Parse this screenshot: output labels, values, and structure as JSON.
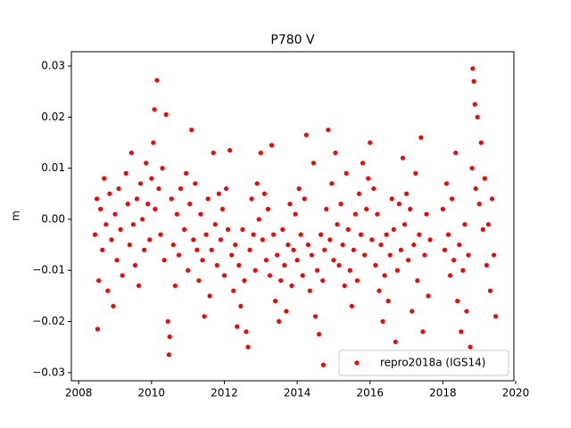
{
  "chart_data": {
    "type": "scatter",
    "title": "P780 V",
    "y_label": "m",
    "xlim": [
      2007.8,
      2019.95
    ],
    "xticks": [
      2008,
      2010,
      2012,
      2014,
      2016,
      2018,
      2020
    ],
    "ylim": [
      -0.0316,
      0.0328
    ],
    "yticks": [
      {
        "value": -0.03,
        "label": "−0.03"
      },
      {
        "value": -0.02,
        "label": "−0.02"
      },
      {
        "value": -0.01,
        "label": "−0.01"
      },
      {
        "value": 0,
        "label": "0.00"
      },
      0.01,
      0.02,
      0.03
    ],
    "legend": "lower right",
    "grid": false,
    "series": [
      {
        "name": "repro2018a (IGS14)",
        "color": "#ff0000",
        "x": [
          2008.45,
          2008.5,
          2008.52,
          2008.55,
          2008.6,
          2008.65,
          2008.7,
          2008.75,
          2008.8,
          2008.85,
          2008.9,
          2008.95,
          2009.0,
          2009.05,
          2009.1,
          2009.15,
          2009.2,
          2009.3,
          2009.35,
          2009.4,
          2009.45,
          2009.5,
          2009.55,
          2009.6,
          2009.65,
          2009.7,
          2009.75,
          2009.8,
          2009.85,
          2009.9,
          2009.95,
          2010.0,
          2010.05,
          2010.08,
          2010.1,
          2010.15,
          2010.2,
          2010.25,
          2010.3,
          2010.35,
          2010.4,
          2010.45,
          2010.48,
          2010.5,
          2010.55,
          2010.6,
          2010.65,
          2010.7,
          2010.75,
          2010.8,
          2010.9,
          2010.95,
          2011.0,
          2011.05,
          2011.1,
          2011.15,
          2011.2,
          2011.25,
          2011.3,
          2011.35,
          2011.4,
          2011.45,
          2011.5,
          2011.55,
          2011.6,
          2011.65,
          2011.7,
          2011.75,
          2011.8,
          2011.85,
          2011.9,
          2011.95,
          2012.0,
          2012.05,
          2012.1,
          2012.15,
          2012.2,
          2012.25,
          2012.3,
          2012.35,
          2012.4,
          2012.45,
          2012.5,
          2012.55,
          2012.6,
          2012.65,
          2012.7,
          2012.75,
          2012.8,
          2012.85,
          2012.9,
          2012.95,
          2013.0,
          2013.05,
          2013.1,
          2013.15,
          2013.2,
          2013.25,
          2013.3,
          2013.35,
          2013.4,
          2013.45,
          2013.5,
          2013.55,
          2013.6,
          2013.65,
          2013.7,
          2013.75,
          2013.8,
          2013.85,
          2013.9,
          2013.95,
          2014.0,
          2014.05,
          2014.1,
          2014.15,
          2014.2,
          2014.25,
          2014.3,
          2014.35,
          2014.4,
          2014.45,
          2014.5,
          2014.55,
          2014.6,
          2014.65,
          2014.7,
          2014.72,
          2014.75,
          2014.8,
          2014.85,
          2014.9,
          2014.95,
          2015.0,
          2015.05,
          2015.1,
          2015.15,
          2015.2,
          2015.25,
          2015.3,
          2015.35,
          2015.4,
          2015.45,
          2015.5,
          2015.55,
          2015.6,
          2015.65,
          2015.7,
          2015.75,
          2015.8,
          2015.85,
          2015.9,
          2015.95,
          2016.0,
          2016.05,
          2016.1,
          2016.15,
          2016.2,
          2016.25,
          2016.3,
          2016.35,
          2016.4,
          2016.45,
          2016.5,
          2016.55,
          2016.6,
          2016.65,
          2016.7,
          2016.75,
          2016.8,
          2016.85,
          2016.9,
          2016.95,
          2017.0,
          2017.05,
          2017.1,
          2017.15,
          2017.2,
          2017.25,
          2017.3,
          2017.35,
          2017.4,
          2017.45,
          2017.5,
          2017.55,
          2017.6,
          2017.65,
          2018.0,
          2018.05,
          2018.1,
          2018.15,
          2018.2,
          2018.25,
          2018.3,
          2018.35,
          2018.4,
          2018.45,
          2018.5,
          2018.55,
          2018.6,
          2018.65,
          2018.7,
          2018.75,
          2018.8,
          2018.82,
          2018.85,
          2018.88,
          2018.9,
          2018.95,
          2019.0,
          2019.05,
          2019.1,
          2019.15,
          2019.2,
          2019.25,
          2019.3,
          2019.35,
          2019.4,
          2019.45
        ],
        "values": [
          -0.003,
          0.004,
          -0.0215,
          -0.012,
          0.002,
          -0.006,
          0.008,
          -0.001,
          -0.014,
          0.005,
          -0.004,
          -0.017,
          0.001,
          -0.008,
          0.006,
          -0.002,
          -0.011,
          0.009,
          0.003,
          -0.005,
          0.013,
          -0.001,
          -0.009,
          0.004,
          -0.013,
          0.007,
          0,
          -0.006,
          0.011,
          0.003,
          -0.004,
          0.008,
          0.015,
          0.0215,
          0.002,
          0.0272,
          0.006,
          -0.003,
          0.01,
          -0.008,
          0.0205,
          -0.02,
          -0.0265,
          -0.023,
          0.004,
          -0.005,
          -0.013,
          0.001,
          -0.007,
          0.006,
          -0.002,
          0.009,
          -0.01,
          0.003,
          0.0175,
          -0.004,
          0.007,
          -0.006,
          -0.012,
          0.001,
          -0.008,
          -0.019,
          -0.003,
          0.004,
          -0.015,
          -0.006,
          0.013,
          -0.001,
          -0.009,
          0.005,
          -0.004,
          0.002,
          -0.011,
          0.006,
          -0.002,
          0.0135,
          -0.007,
          -0.014,
          -0.005,
          -0.021,
          -0.009,
          -0.017,
          -0.002,
          -0.012,
          -0.022,
          -0.025,
          -0.006,
          0.004,
          -0.003,
          -0.01,
          0.007,
          0,
          0.013,
          -0.004,
          0.005,
          -0.008,
          0.002,
          -0.011,
          0.0145,
          -0.003,
          -0.016,
          -0.007,
          -0.02,
          -0.012,
          -0.002,
          -0.009,
          -0.018,
          -0.005,
          0.003,
          -0.013,
          -0.006,
          0.001,
          -0.008,
          0.006,
          -0.003,
          -0.011,
          0.004,
          0.0165,
          -0.005,
          -0.014,
          -0.007,
          0.011,
          -0.019,
          -0.01,
          -0.0225,
          -0.003,
          -0.012,
          -0.0285,
          -0.006,
          0.002,
          0.0175,
          -0.004,
          0.007,
          -0.008,
          0.013,
          -0.001,
          -0.009,
          0.003,
          -0.005,
          -0.013,
          0.009,
          -0.002,
          -0.01,
          -0.017,
          -0.006,
          0.001,
          -0.012,
          0.005,
          -0.003,
          0.011,
          -0.007,
          0.002,
          0.008,
          0.015,
          -0.004,
          0.006,
          -0.009,
          0.001,
          -0.014,
          -0.005,
          -0.02,
          -0.011,
          -0.003,
          -0.016,
          -0.007,
          0.004,
          -0.002,
          -0.024,
          -0.01,
          0.003,
          -0.006,
          0.012,
          -0.001,
          0.005,
          -0.008,
          0.002,
          -0.018,
          -0.005,
          0.009,
          -0.012,
          -0.003,
          0.016,
          -0.022,
          -0.007,
          0.001,
          -0.015,
          -0.004,
          0.002,
          -0.006,
          0.007,
          -0.003,
          -0.011,
          0.004,
          -0.008,
          0.013,
          -0.016,
          -0.005,
          -0.022,
          -0.01,
          -0.001,
          -0.018,
          -0.007,
          -0.025,
          0.01,
          0.0295,
          0.027,
          0.0225,
          0.006,
          0.02,
          0.003,
          0.015,
          -0.002,
          0.008,
          -0.009,
          -0.001,
          -0.014,
          0.004,
          -0.007,
          -0.019
        ]
      }
    ]
  }
}
